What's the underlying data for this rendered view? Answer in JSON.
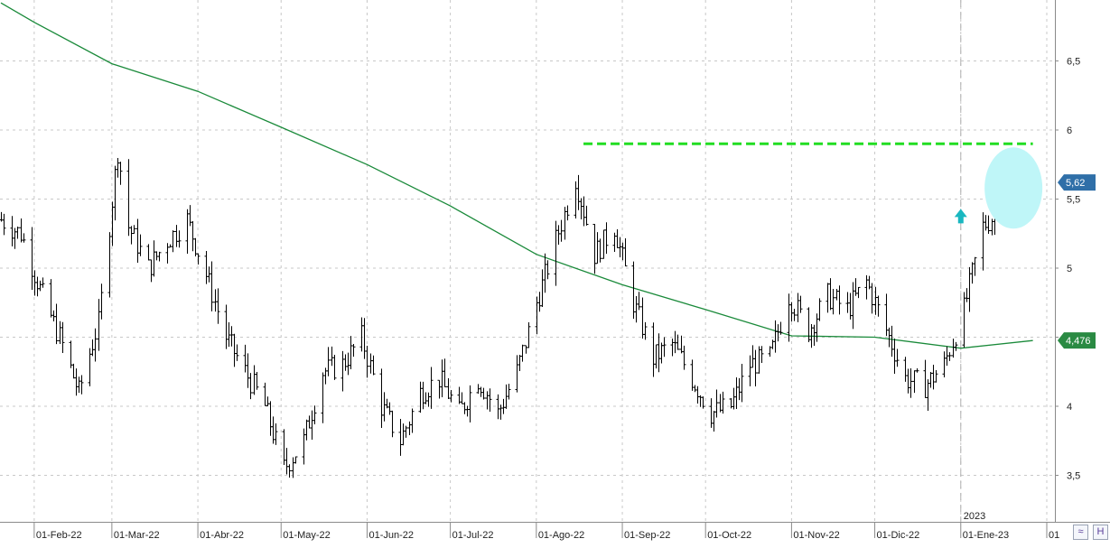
{
  "chart_data": {
    "type": "bar",
    "subtype": "ohlc-price-chart",
    "title": "",
    "xlabel": "",
    "ylabel": "",
    "ylim": [
      3.25,
      7.0
    ],
    "grid": true,
    "y_ticks": [
      "3,5",
      "4",
      "4,5",
      "5",
      "5,5",
      "6",
      "6,5"
    ],
    "y_tick_values": [
      3.5,
      4.0,
      4.5,
      5.0,
      5.5,
      6.0,
      6.5
    ],
    "x_tick_labels": [
      "01-Feb-22",
      "01-Mar-22",
      "01-Abr-22",
      "01-May-22",
      "01-Jun-22",
      "01-Jul-22",
      "01-Ago-22",
      "01-Sep-22",
      "01-Oct-22",
      "01-Nov-22",
      "01-Dic-22",
      "01-Ene-23",
      "01"
    ],
    "x_tick_dates": [
      "2022-02-01",
      "2022-03-01",
      "2022-04-01",
      "2022-05-01",
      "2022-06-01",
      "2022-07-01",
      "2022-08-01",
      "2022-09-01",
      "2022-10-01",
      "2022-11-01",
      "2022-12-01",
      "2023-01-01",
      "2023-02-01"
    ],
    "x_range": [
      "2022-01-20",
      "2023-02-01"
    ],
    "year_marker": {
      "date": "2023-01-01",
      "label": "2023"
    },
    "price_labels": {
      "last_price": "5,62",
      "moving_average": "4,476"
    },
    "price_series": {
      "name": "",
      "points": [
        [
          "2022-01-20",
          5.35
        ],
        [
          "2022-01-27",
          5.25
        ],
        [
          "2022-02-03",
          4.85
        ],
        [
          "2022-02-10",
          4.5
        ],
        [
          "2022-02-17",
          4.1
        ],
        [
          "2022-02-24",
          4.6
        ],
        [
          "2022-03-03",
          5.85
        ],
        [
          "2022-03-07",
          5.3
        ],
        [
          "2022-03-14",
          5.0
        ],
        [
          "2022-03-21",
          5.2
        ],
        [
          "2022-03-28",
          5.35
        ],
        [
          "2022-04-04",
          4.95
        ],
        [
          "2022-04-11",
          4.5
        ],
        [
          "2022-04-18",
          4.25
        ],
        [
          "2022-04-25",
          4.0
        ],
        [
          "2022-05-02",
          3.55
        ],
        [
          "2022-05-09",
          3.75
        ],
        [
          "2022-05-16",
          4.25
        ],
        [
          "2022-05-23",
          4.3
        ],
        [
          "2022-05-30",
          4.5
        ],
        [
          "2022-06-06",
          4.0
        ],
        [
          "2022-06-13",
          3.75
        ],
        [
          "2022-06-20",
          4.1
        ],
        [
          "2022-06-27",
          4.2
        ],
        [
          "2022-07-04",
          3.95
        ],
        [
          "2022-07-11",
          4.2
        ],
        [
          "2022-07-18",
          3.95
        ],
        [
          "2022-07-25",
          4.25
        ],
        [
          "2022-08-01",
          4.75
        ],
        [
          "2022-08-08",
          5.2
        ],
        [
          "2022-08-15",
          5.65
        ],
        [
          "2022-08-22",
          5.1
        ],
        [
          "2022-08-29",
          5.3
        ],
        [
          "2022-09-05",
          4.75
        ],
        [
          "2022-09-12",
          4.35
        ],
        [
          "2022-09-19",
          4.45
        ],
        [
          "2022-09-26",
          4.2
        ],
        [
          "2022-10-03",
          3.95
        ],
        [
          "2022-10-10",
          4.0
        ],
        [
          "2022-10-17",
          4.3
        ],
        [
          "2022-10-24",
          4.35
        ],
        [
          "2022-10-31",
          4.8
        ],
        [
          "2022-11-07",
          4.55
        ],
        [
          "2022-11-14",
          4.8
        ],
        [
          "2022-11-21",
          4.7
        ],
        [
          "2022-11-28",
          4.9
        ],
        [
          "2022-12-05",
          4.55
        ],
        [
          "2022-12-12",
          4.2
        ],
        [
          "2022-12-19",
          4.15
        ],
        [
          "2022-12-26",
          4.3
        ],
        [
          "2023-01-02",
          4.7
        ],
        [
          "2023-01-09",
          5.3
        ],
        [
          "2023-01-16",
          5.45
        ],
        [
          "2023-01-23",
          5.55
        ],
        [
          "2023-01-27",
          5.62
        ]
      ]
    },
    "moving_average": {
      "name": "",
      "color": "#1a8a3a",
      "points": [
        [
          "2022-01-20",
          6.92
        ],
        [
          "2022-02-01",
          6.78
        ],
        [
          "2022-03-01",
          6.48
        ],
        [
          "2022-04-01",
          6.28
        ],
        [
          "2022-05-01",
          6.02
        ],
        [
          "2022-06-01",
          5.75
        ],
        [
          "2022-07-01",
          5.45
        ],
        [
          "2022-08-01",
          5.1
        ],
        [
          "2022-09-01",
          4.88
        ],
        [
          "2022-10-01",
          4.7
        ],
        [
          "2022-11-01",
          4.51
        ],
        [
          "2022-12-01",
          4.5
        ],
        [
          "2023-01-01",
          4.42
        ],
        [
          "2023-01-27",
          4.476
        ]
      ]
    },
    "resistance_line": {
      "value": 5.9,
      "color": "#22dd22",
      "start": "2022-08-18",
      "end": "2023-01-27"
    },
    "highlight": {
      "center_date": "2023-01-20",
      "center_value": 5.58,
      "color": "#bff6f8"
    },
    "arrow": {
      "date": "2023-01-01",
      "value": 5.37,
      "direction": "up",
      "color": "#19b7c0"
    },
    "price_color": "#000000",
    "grid_color": "#c8c8c8"
  },
  "ui": {
    "corner_buttons": [
      {
        "name": "zoom-fit-button",
        "icon": "double-chevron-down-icon",
        "glyph": "≈"
      },
      {
        "name": "horizontal-scale-button",
        "icon": "h-icon",
        "glyph": "H"
      }
    ]
  }
}
